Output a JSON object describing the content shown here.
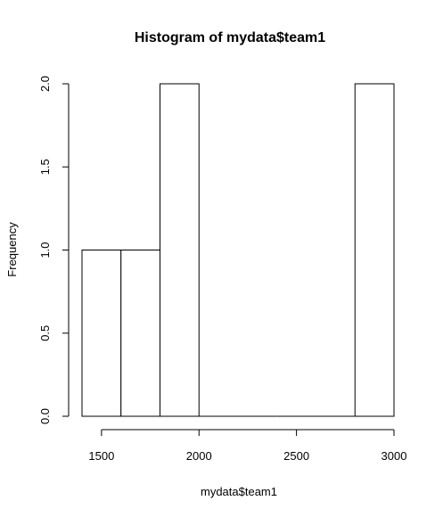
{
  "chart_data": {
    "type": "bar",
    "title": "Histogram of mydata$team1",
    "xlabel": "mydata$team1",
    "ylabel": "Frequency",
    "bins": [
      {
        "start": 1400,
        "end": 1600,
        "count": 1
      },
      {
        "start": 1600,
        "end": 1800,
        "count": 1
      },
      {
        "start": 1800,
        "end": 2000,
        "count": 2
      },
      {
        "start": 2000,
        "end": 2200,
        "count": 0
      },
      {
        "start": 2200,
        "end": 2400,
        "count": 0
      },
      {
        "start": 2400,
        "end": 2600,
        "count": 0
      },
      {
        "start": 2600,
        "end": 2800,
        "count": 0
      },
      {
        "start": 2800,
        "end": 3000,
        "count": 2
      }
    ],
    "x_ticks": [
      1500,
      2000,
      2500,
      3000
    ],
    "x_tick_labels": [
      "1500",
      "2000",
      "2500",
      "3000"
    ],
    "y_ticks": [
      0,
      0.5,
      1,
      1.5,
      2
    ],
    "y_tick_labels": [
      "0.0",
      "0.5",
      "1.0",
      "1.5",
      "2.0"
    ],
    "xlim": [
      1400,
      3000
    ],
    "ylim": [
      0,
      2
    ],
    "grid": false,
    "legend": "none",
    "bar_fill": "#ffffff",
    "bar_stroke": "#000000"
  }
}
